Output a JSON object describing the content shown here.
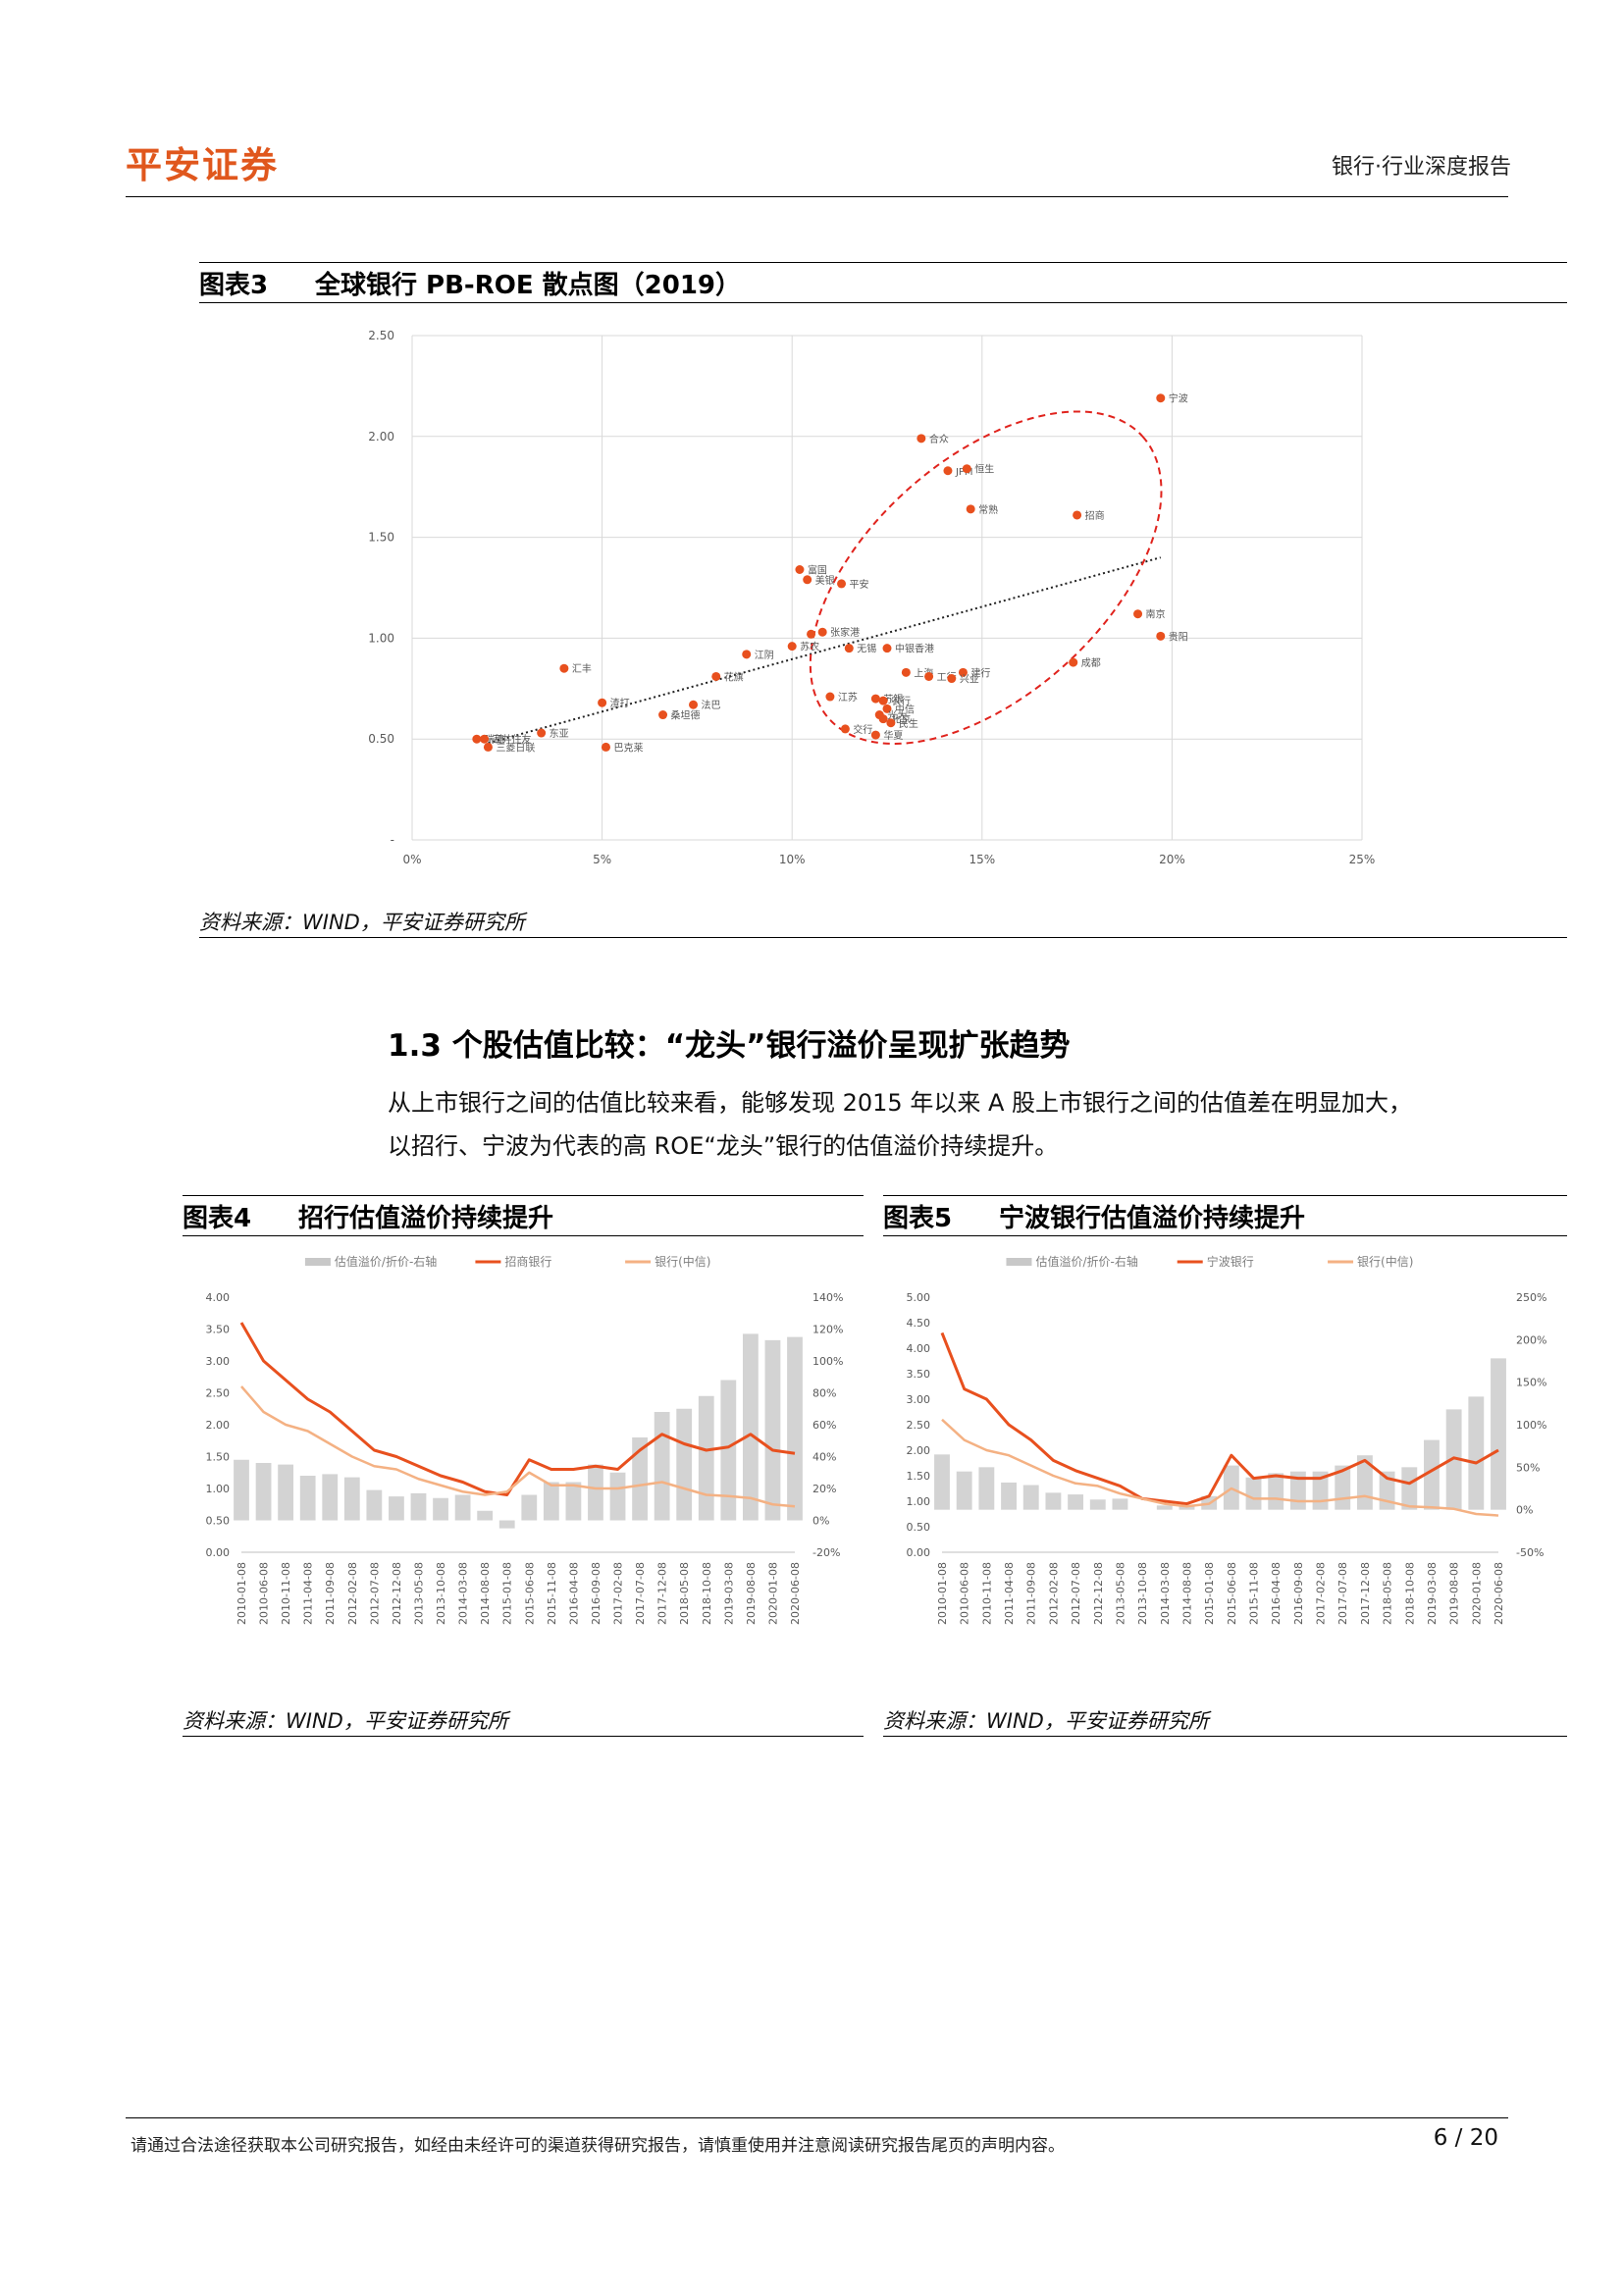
{
  "header": {
    "logo": "平安证券",
    "title": "银行·行业深度报告"
  },
  "fig3": {
    "num": "图表3",
    "title": "全球银行 PB-ROE 散点图（2019）",
    "source": "资料来源：WIND，平安证券研究所"
  },
  "section": {
    "title": "1.3 个股估值比较：“龙头”银行溢价呈现扩张趋势",
    "para1": "从上市银行之间的估值比较来看，能够发现 2015 年以来 A 股上市银行之间的估值差在明显加大，",
    "para2": "以招行、宁波为代表的高 ROE“龙头”银行的估值溢价持续提升。"
  },
  "fig4": {
    "num": "图表4",
    "title": "招行估值溢价持续提升",
    "source": "资料来源：WIND，平安证券研究所"
  },
  "fig5": {
    "num": "图表5",
    "title": "宁波银行估值溢价持续提升",
    "source": "资料来源：WIND，平安证券研究所"
  },
  "footer": {
    "disclaimer": "请通过合法途径获取本公司研究报告，如经由未经许可的渠道获得研究报告，请慎重使用并注意阅读研究报告尾页的声明内容。",
    "page": "6 / 20"
  },
  "colors": {
    "accent": "#e0571d",
    "scatter_point": "#e8501e",
    "bar_gray": "#c8c8c8",
    "line_dark": "#e8501e",
    "line_light": "#f4b183"
  },
  "chart_data": [
    {
      "id": "fig3",
      "type": "scatter",
      "xlim": [
        0,
        0.25
      ],
      "ylim": [
        0,
        2.5
      ],
      "x_ticks": [
        "0%",
        "5%",
        "10%",
        "15%",
        "20%",
        "25%"
      ],
      "y_ticks": [
        "-",
        "0.50",
        "1.00",
        "1.50",
        "2.00",
        "2.50"
      ],
      "grid": true,
      "trendline": {
        "style": "dotted",
        "from": [
          0.02,
          0.48
        ],
        "to": [
          0.197,
          1.4
        ]
      },
      "annotation": {
        "shape": "ellipse",
        "style": "red-dashed"
      },
      "points": [
        {
          "label": "宁波",
          "x": 0.197,
          "y": 2.19
        },
        {
          "label": "合众",
          "x": 0.134,
          "y": 1.99
        },
        {
          "label": "JPM",
          "x": 0.141,
          "y": 1.83
        },
        {
          "label": "恒生",
          "x": 0.146,
          "y": 1.84
        },
        {
          "label": "常熟",
          "x": 0.147,
          "y": 1.64
        },
        {
          "label": "招商",
          "x": 0.175,
          "y": 1.61
        },
        {
          "label": "富国",
          "x": 0.102,
          "y": 1.34
        },
        {
          "label": "美银",
          "x": 0.104,
          "y": 1.29
        },
        {
          "label": "平安",
          "x": 0.113,
          "y": 1.27
        },
        {
          "label": "南京",
          "x": 0.191,
          "y": 1.12
        },
        {
          "label": "贵阳",
          "x": 0.197,
          "y": 1.01
        },
        {
          "label": "张家港",
          "x": 0.108,
          "y": 1.03
        },
        {
          "label": "",
          "x": 0.105,
          "y": 1.02
        },
        {
          "label": "江阴",
          "x": 0.088,
          "y": 0.92
        },
        {
          "label": "苏农",
          "x": 0.1,
          "y": 0.96
        },
        {
          "label": "无锡",
          "x": 0.115,
          "y": 0.95
        },
        {
          "label": "中银香港",
          "x": 0.125,
          "y": 0.95
        },
        {
          "label": "汇丰",
          "x": 0.04,
          "y": 0.85
        },
        {
          "label": "成都",
          "x": 0.174,
          "y": 0.88
        },
        {
          "label": "上海",
          "x": 0.13,
          "y": 0.83
        },
        {
          "label": "建行",
          "x": 0.145,
          "y": 0.83
        },
        {
          "label": "工行",
          "x": 0.136,
          "y": 0.81
        },
        {
          "label": "兴业",
          "x": 0.142,
          "y": 0.8
        },
        {
          "label": "花旗",
          "x": 0.08,
          "y": 0.81
        },
        {
          "label": "江苏",
          "x": 0.11,
          "y": 0.71
        },
        {
          "label": "苏银",
          "x": 0.122,
          "y": 0.7
        },
        {
          "label": "农行",
          "x": 0.124,
          "y": 0.69
        },
        {
          "label": "中信",
          "x": 0.125,
          "y": 0.65
        },
        {
          "label": "光大",
          "x": 0.123,
          "y": 0.62
        },
        {
          "label": "北京",
          "x": 0.124,
          "y": 0.6
        },
        {
          "label": "民生",
          "x": 0.126,
          "y": 0.58
        },
        {
          "label": "交行",
          "x": 0.114,
          "y": 0.55
        },
        {
          "label": "华夏",
          "x": 0.122,
          "y": 0.52
        },
        {
          "label": "渣打",
          "x": 0.05,
          "y": 0.68
        },
        {
          "label": "法巴",
          "x": 0.074,
          "y": 0.67
        },
        {
          "label": "桑坦德",
          "x": 0.066,
          "y": 0.62
        },
        {
          "label": "巴克莱",
          "x": 0.051,
          "y": 0.46
        },
        {
          "label": "东亚",
          "x": 0.034,
          "y": 0.53
        },
        {
          "label": "瑞穗",
          "x": 0.017,
          "y": 0.5
        },
        {
          "label": "三井住友",
          "x": 0.019,
          "y": 0.5
        },
        {
          "label": "三菱日联",
          "x": 0.02,
          "y": 0.46
        }
      ]
    },
    {
      "id": "fig4",
      "type": "area",
      "legend": [
        "估值溢价/折价-右轴",
        "招商银行",
        "银行(中信)"
      ],
      "legend_position": "top",
      "y_left_ticks": [
        "0.00",
        "0.50",
        "1.00",
        "1.50",
        "2.00",
        "2.50",
        "3.00",
        "3.50",
        "4.00"
      ],
      "y_left_lim": [
        0,
        4
      ],
      "y_right_ticks": [
        "-20%",
        "0%",
        "20%",
        "40%",
        "60%",
        "80%",
        "100%",
        "120%",
        "140%"
      ],
      "y_right_lim": [
        -0.2,
        1.4
      ],
      "x_ticks": [
        "2010-01-08",
        "2010-06-08",
        "2010-11-08",
        "2011-04-08",
        "2011-09-08",
        "2012-02-08",
        "2012-07-08",
        "2012-12-08",
        "2013-05-08",
        "2013-10-08",
        "2014-03-08",
        "2014-08-08",
        "2015-01-08",
        "2015-06-08",
        "2015-11-08",
        "2016-04-08",
        "2016-09-08",
        "2017-02-08",
        "2017-07-08",
        "2017-12-08",
        "2018-05-08",
        "2018-10-08",
        "2019-03-08",
        "2019-08-08",
        "2020-01-08",
        "2020-06-08"
      ],
      "series": [
        {
          "name": "招商银行",
          "type": "line",
          "values": [
            3.6,
            3.0,
            2.7,
            2.4,
            2.2,
            1.9,
            1.6,
            1.5,
            1.35,
            1.2,
            1.1,
            0.95,
            0.9,
            1.45,
            1.3,
            1.3,
            1.35,
            1.3,
            1.6,
            1.85,
            1.7,
            1.6,
            1.65,
            1.85,
            1.6,
            1.55
          ]
        },
        {
          "name": "银行(中信)",
          "type": "line",
          "values": [
            2.6,
            2.2,
            2.0,
            1.9,
            1.7,
            1.5,
            1.35,
            1.3,
            1.15,
            1.05,
            0.95,
            0.9,
            0.95,
            1.25,
            1.05,
            1.05,
            1.0,
            1.0,
            1.05,
            1.1,
            1.0,
            0.9,
            0.88,
            0.85,
            0.75,
            0.72
          ]
        },
        {
          "name": "估值溢价/折价-右轴",
          "type": "bar",
          "values": [
            0.38,
            0.36,
            0.35,
            0.28,
            0.29,
            0.27,
            0.19,
            0.15,
            0.17,
            0.14,
            0.16,
            0.06,
            -0.05,
            0.16,
            0.24,
            0.24,
            0.35,
            0.3,
            0.52,
            0.68,
            0.7,
            0.78,
            0.88,
            1.17,
            1.13,
            1.15
          ]
        }
      ]
    },
    {
      "id": "fig5",
      "type": "area",
      "legend": [
        "估值溢价/折价-右轴",
        "宁波银行",
        "银行(中信)"
      ],
      "legend_position": "top",
      "y_left_ticks": [
        "0.00",
        "0.50",
        "1.00",
        "1.50",
        "2.00",
        "2.50",
        "3.00",
        "3.50",
        "4.00",
        "4.50",
        "5.00"
      ],
      "y_left_lim": [
        0,
        5
      ],
      "y_right_ticks": [
        "-50%",
        "0%",
        "50%",
        "100%",
        "150%",
        "200%",
        "250%"
      ],
      "y_right_lim": [
        -0.5,
        2.5
      ],
      "x_ticks": [
        "2010-01-08",
        "2010-06-08",
        "2010-11-08",
        "2011-04-08",
        "2011-09-08",
        "2012-02-08",
        "2012-07-08",
        "2012-12-08",
        "2013-05-08",
        "2013-10-08",
        "2014-03-08",
        "2014-08-08",
        "2015-01-08",
        "2015-06-08",
        "2015-11-08",
        "2016-04-08",
        "2016-09-08",
        "2017-02-08",
        "2017-07-08",
        "2017-12-08",
        "2018-05-08",
        "2018-10-08",
        "2019-03-08",
        "2019-08-08",
        "2020-01-08",
        "2020-06-08"
      ],
      "series": [
        {
          "name": "宁波银行",
          "type": "line",
          "values": [
            4.3,
            3.2,
            3.0,
            2.5,
            2.2,
            1.8,
            1.6,
            1.45,
            1.3,
            1.05,
            1.0,
            0.95,
            1.1,
            1.9,
            1.45,
            1.5,
            1.45,
            1.45,
            1.6,
            1.8,
            1.45,
            1.35,
            1.6,
            1.85,
            1.75,
            2.0
          ]
        },
        {
          "name": "银行(中信)",
          "type": "line",
          "values": [
            2.6,
            2.2,
            2.0,
            1.9,
            1.7,
            1.5,
            1.35,
            1.3,
            1.15,
            1.05,
            0.95,
            0.9,
            0.95,
            1.25,
            1.05,
            1.05,
            1.0,
            1.0,
            1.05,
            1.1,
            1.0,
            0.9,
            0.88,
            0.85,
            0.75,
            0.72
          ]
        },
        {
          "name": "估值溢价/折价-右轴",
          "type": "bar",
          "values": [
            0.65,
            0.45,
            0.5,
            0.32,
            0.29,
            0.2,
            0.18,
            0.12,
            0.13,
            0.0,
            0.05,
            0.06,
            0.16,
            0.52,
            0.38,
            0.43,
            0.45,
            0.45,
            0.52,
            0.64,
            0.45,
            0.5,
            0.82,
            1.18,
            1.33,
            1.78
          ]
        }
      ]
    }
  ]
}
